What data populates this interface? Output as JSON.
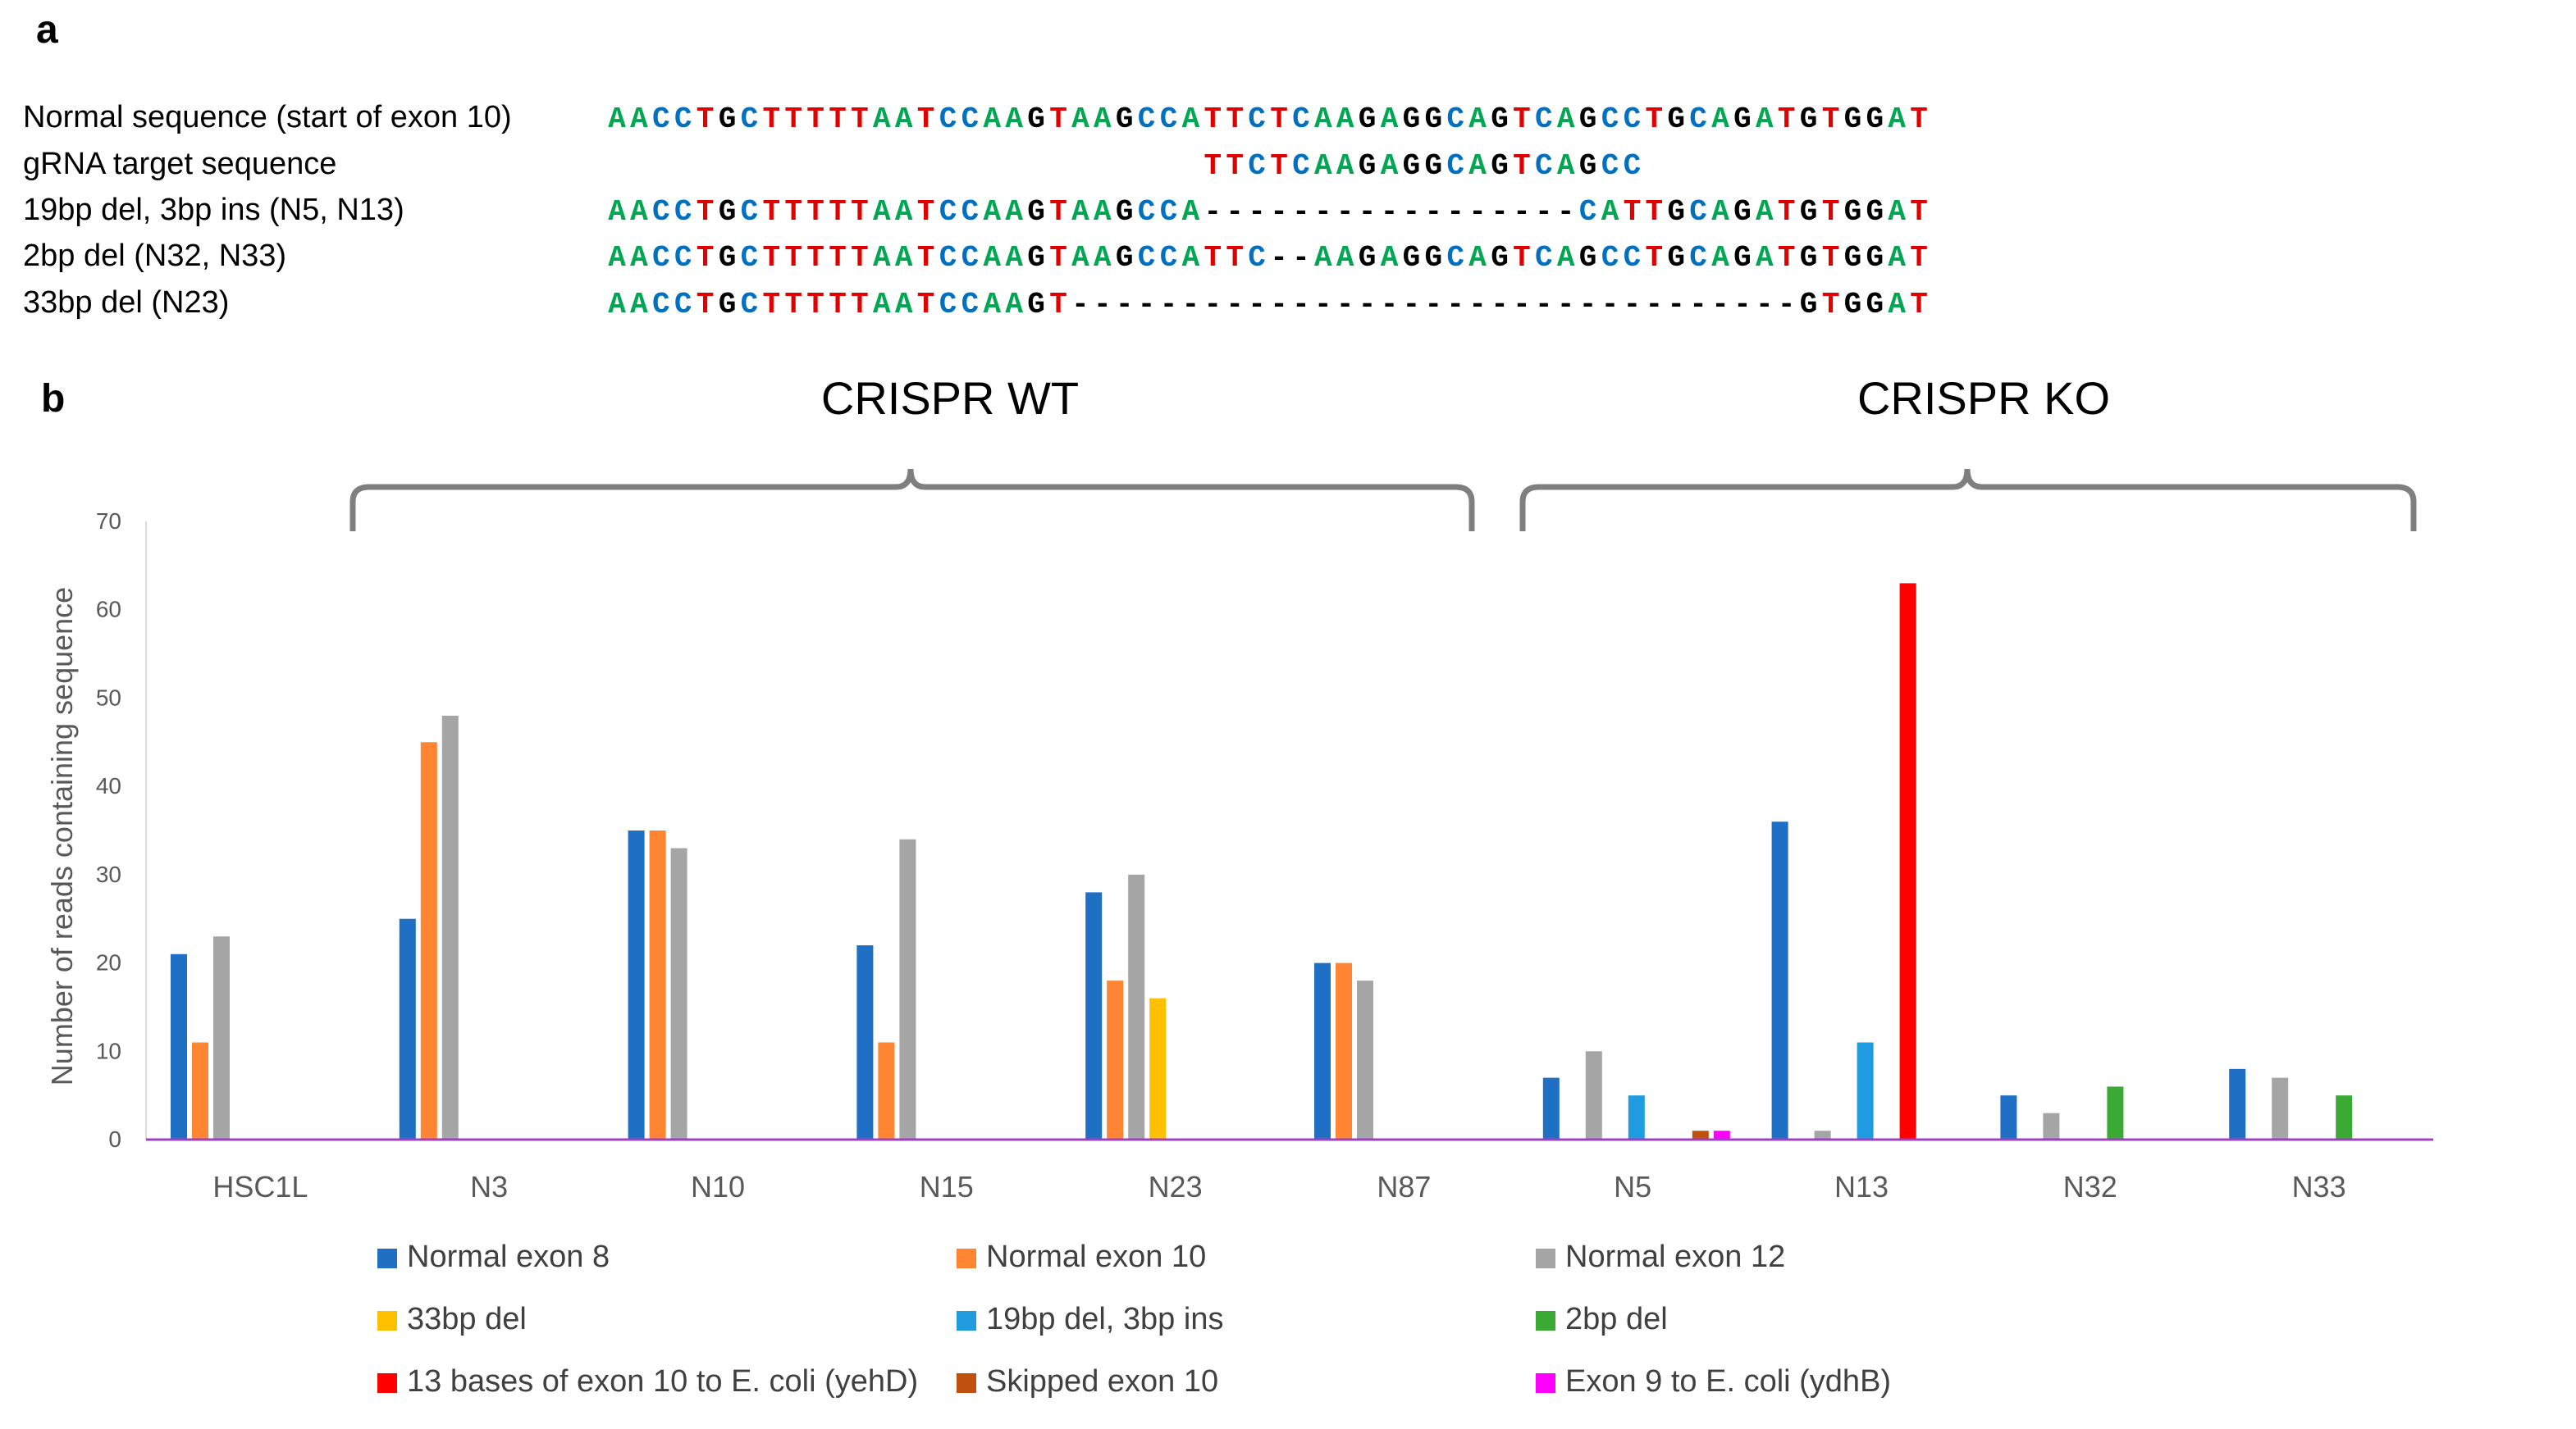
{
  "panel_a": {
    "label": "a",
    "rows": [
      {
        "label": "Normal sequence (start of exon 10)",
        "seq": "AACCTGCTTTTTAATCCAAGTAAGCCATTCTCAAGAGGCAGTCAGCCTGCAGATGTGGAT"
      },
      {
        "label": "gRNA target sequence",
        "seq": "                           TTCTCAAGAGGCAGTCAGCC"
      },
      {
        "label": "19bp del, 3bp ins (N5, N13)",
        "seq": "AACCTGCTTTTTAATCCAAGTAAGCCA-----------------CATTGCAGATGTGGAT"
      },
      {
        "label": "2bp del (N32, N33)",
        "seq": "AACCTGCTTTTTAATCCAAGTAAGCCATTC--AAGAGGCAGTCAGCCTGCAGATGTGGAT"
      },
      {
        "label": "33bp del (N23)",
        "seq": "AACCTGCTTTTTAATCCAAGT---------------------------------GTGGAT"
      }
    ],
    "base_colors": {
      "A": "#00a651",
      "C": "#0070c0",
      "G": "#000000",
      "T": "#e00000",
      "-": "#000000"
    }
  },
  "panel_b": {
    "label": "b",
    "group_titles": [
      "CRISPR WT",
      "CRISPR KO"
    ]
  },
  "chart_data": {
    "type": "bar",
    "title": "",
    "xlabel": "",
    "ylabel": "Number of reads containing sequence",
    "ylim": [
      0,
      70
    ],
    "yticks": [
      0,
      10,
      20,
      30,
      40,
      50,
      60,
      70
    ],
    "categories": [
      "HSC1L",
      "N3",
      "N10",
      "N15",
      "N23",
      "N87",
      "N5",
      "N13",
      "N32",
      "N33"
    ],
    "groups": [
      {
        "name": "CRISPR WT",
        "categories": [
          "HSC1L",
          "N3",
          "N10",
          "N15",
          "N23",
          "N87"
        ]
      },
      {
        "name": "CRISPR KO",
        "categories": [
          "N5",
          "N13",
          "N32",
          "N33"
        ]
      }
    ],
    "series": [
      {
        "name": "Normal exon 8",
        "color": "#1f6fc5",
        "values": [
          21,
          25,
          35,
          22,
          28,
          20,
          7,
          36,
          5,
          8
        ]
      },
      {
        "name": "Normal exon 10",
        "color": "#ff8533",
        "values": [
          11,
          45,
          35,
          11,
          18,
          20,
          0,
          0,
          0,
          0
        ]
      },
      {
        "name": "Normal exon 12",
        "color": "#a5a5a5",
        "values": [
          23,
          48,
          33,
          34,
          30,
          18,
          10,
          1,
          3,
          7
        ]
      },
      {
        "name": "33bp del",
        "color": "#ffc000",
        "values": [
          0,
          0,
          0,
          0,
          16,
          0,
          0,
          0,
          0,
          0
        ]
      },
      {
        "name": "19bp del, 3bp ins",
        "color": "#1f9be0",
        "values": [
          0,
          0,
          0,
          0,
          0,
          0,
          5,
          11,
          0,
          0
        ]
      },
      {
        "name": "2bp del",
        "color": "#3aaa35",
        "values": [
          0,
          0,
          0,
          0,
          0,
          0,
          0,
          0,
          6,
          5
        ]
      },
      {
        "name": "13 bases of exon 10 to E. coli (yehD)",
        "color": "#ff0000",
        "values": [
          0,
          0,
          0,
          0,
          0,
          0,
          0,
          63,
          0,
          0
        ]
      },
      {
        "name": "Skipped exon 10",
        "color": "#c0500f",
        "values": [
          0,
          0,
          0,
          0,
          0,
          0,
          1,
          0,
          0,
          0
        ]
      },
      {
        "name": "Exon 9 to E. coli (ydhB)",
        "color": "#ff00ff",
        "values": [
          0,
          0,
          0,
          0,
          0,
          0,
          1,
          0,
          0,
          0
        ]
      }
    ],
    "legend_position": "bottom",
    "grid": false
  }
}
